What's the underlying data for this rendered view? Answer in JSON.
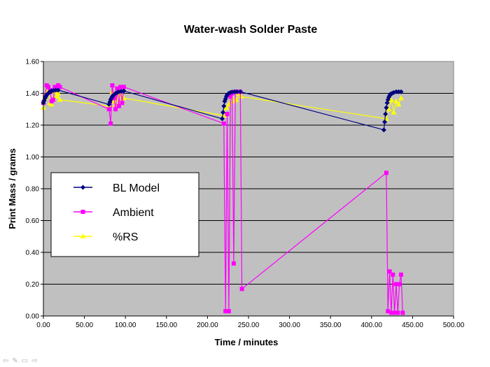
{
  "chart_data": {
    "type": "line",
    "title": "Water-wash Solder Paste",
    "xlabel": "Time / minutes",
    "ylabel": "Print Mass / grams",
    "xlim": [
      0,
      500
    ],
    "ylim": [
      0,
      1.6
    ],
    "x_ticks": [
      "0.00",
      "50.00",
      "100.00",
      "150.00",
      "200.00",
      "250.00",
      "300.00",
      "350.00",
      "400.00",
      "450.00",
      "500.00"
    ],
    "y_ticks": [
      "0.00",
      "0.20",
      "0.40",
      "0.60",
      "0.80",
      "1.00",
      "1.20",
      "1.40",
      "1.60"
    ],
    "grid": "horizontal",
    "plot_background": "#c0c0c0",
    "legend_position": "center-left",
    "series": [
      {
        "name": "BL Model",
        "color": "#000080",
        "marker": "diamond",
        "x": [
          0,
          1,
          2,
          3,
          4,
          5,
          6,
          7,
          8,
          10,
          12,
          15,
          18,
          80,
          81,
          82,
          83,
          84,
          85,
          86,
          87,
          88,
          90,
          92,
          95,
          98,
          218,
          219,
          220,
          221,
          222,
          223,
          224,
          225,
          226,
          228,
          230,
          233,
          236,
          240,
          415,
          416,
          417,
          418,
          419,
          420,
          421,
          422,
          423,
          425,
          427,
          430,
          433,
          436
        ],
        "y": [
          1.34,
          1.355,
          1.37,
          1.38,
          1.39,
          1.395,
          1.4,
          1.405,
          1.41,
          1.415,
          1.418,
          1.42,
          1.42,
          1.33,
          1.345,
          1.36,
          1.37,
          1.38,
          1.385,
          1.39,
          1.395,
          1.4,
          1.405,
          1.41,
          1.412,
          1.415,
          1.24,
          1.28,
          1.32,
          1.35,
          1.365,
          1.38,
          1.39,
          1.395,
          1.4,
          1.405,
          1.408,
          1.41,
          1.41,
          1.41,
          1.17,
          1.22,
          1.27,
          1.31,
          1.34,
          1.36,
          1.375,
          1.385,
          1.395,
          1.4,
          1.405,
          1.41,
          1.41,
          1.41
        ]
      },
      {
        "name": "Ambient",
        "color": "#ff00ff",
        "marker": "square",
        "x": [
          0,
          2,
          4,
          6,
          8,
          10,
          12,
          14,
          16,
          18,
          20,
          80,
          82,
          84,
          86,
          88,
          90,
          92,
          94,
          96,
          98,
          220,
          222,
          224,
          226,
          228,
          230,
          232,
          234,
          236,
          238,
          240,
          242,
          418,
          420,
          422,
          424,
          426,
          428,
          430,
          432,
          434,
          436,
          438
        ],
        "y": [
          1.34,
          1.38,
          1.45,
          1.44,
          1.42,
          1.35,
          1.36,
          1.44,
          1.43,
          1.45,
          1.44,
          1.3,
          1.21,
          1.45,
          1.37,
          1.3,
          1.43,
          1.32,
          1.44,
          1.34,
          1.44,
          1.21,
          0.03,
          1.27,
          0.03,
          1.38,
          1.4,
          0.33,
          1.41,
          1.41,
          1.41,
          1.41,
          0.17,
          0.9,
          0.03,
          0.28,
          0.02,
          0.26,
          0.02,
          0.2,
          0.02,
          0.2,
          0.26,
          0.02
        ]
      },
      {
        "name": "%RS",
        "color": "#ffff00",
        "marker": "triangle",
        "x": [
          0,
          2,
          4,
          6,
          8,
          10,
          12,
          14,
          16,
          18,
          20,
          80,
          82,
          84,
          86,
          88,
          90,
          92,
          94,
          96,
          98,
          220,
          223,
          226,
          229,
          232,
          235,
          238,
          241,
          418,
          421,
          424,
          427,
          430,
          433,
          436
        ],
        "y": [
          1.31,
          1.37,
          1.4,
          1.42,
          1.34,
          1.33,
          1.37,
          1.41,
          1.38,
          1.4,
          1.36,
          1.32,
          1.35,
          1.41,
          1.35,
          1.33,
          1.36,
          1.38,
          1.4,
          1.35,
          1.37,
          1.26,
          1.31,
          1.33,
          1.38,
          1.35,
          1.36,
          1.4,
          1.38,
          1.24,
          1.3,
          1.36,
          1.28,
          1.35,
          1.33,
          1.37
        ]
      }
    ]
  },
  "slide_nav": {
    "icons": [
      "arrow-left-icon",
      "pen-icon",
      "screen-icon",
      "arrow-right-icon"
    ],
    "glyphs": [
      "⇦",
      "✎",
      "▭",
      "⇨"
    ]
  }
}
